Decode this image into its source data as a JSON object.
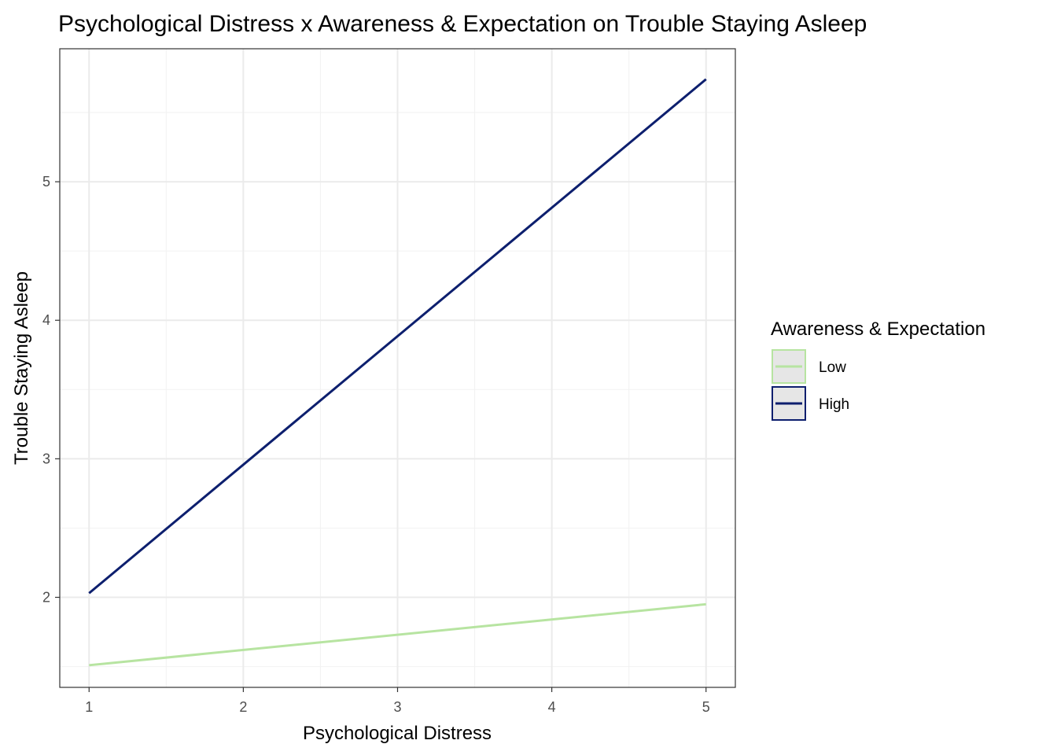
{
  "chart_data": {
    "type": "line",
    "title": "Psychological Distress x Awareness & Expectation on Trouble Staying Asleep",
    "xlabel": "Psychological Distress",
    "ylabel": "Trouble Staying Asleep",
    "xlim": [
      0.81,
      5.19
    ],
    "ylim": [
      1.35,
      5.96
    ],
    "x_ticks": [
      1,
      2,
      3,
      4,
      5
    ],
    "y_ticks": [
      2,
      3,
      4,
      5
    ],
    "grid": true,
    "legend": {
      "title": "Awareness & Expectation",
      "position": "right"
    },
    "series": [
      {
        "name": "Low",
        "color": "#b7e4a1",
        "x": [
          1,
          5
        ],
        "y": [
          1.51,
          1.95
        ]
      },
      {
        "name": "High",
        "color": "#0d1f6e",
        "x": [
          1,
          5
        ],
        "y": [
          2.03,
          5.74
        ]
      }
    ]
  }
}
